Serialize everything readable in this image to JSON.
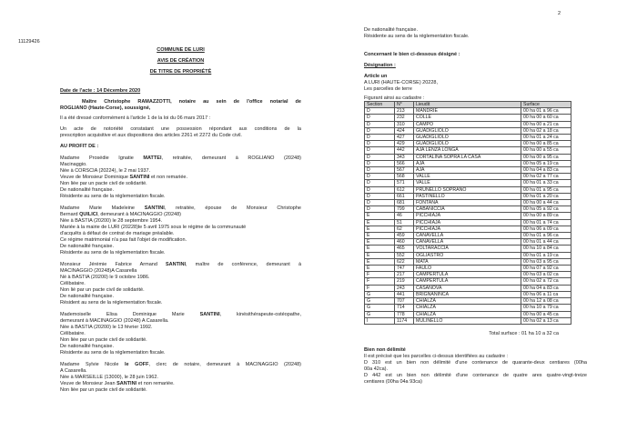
{
  "page_number": "2",
  "reference": "11129426",
  "left": {
    "titles": [
      "COMMUNE DE LURI",
      "AVIS DE CRÉATION",
      "DE TITRE DE PROPRIÉTÉ"
    ],
    "date_acte": "Date de l'acte : 14 Décembre 2020",
    "intro": [
      [
        {
          "t": "Maître Christophe ",
          "b": true
        },
        {
          "t": "RAMAZZOTTI",
          "b": true
        },
        {
          "t": ", notaire au sein de l'office notarial de",
          "b": true
        }
      ],
      [
        {
          "t": "ROGLIANO (Haute-Corse), soussigné,",
          "b": true
        }
      ]
    ],
    "loi": "Il a été dressé conformément à l'article 1 de la loi du 06 mars 2017 :",
    "acte": [
      "Un acte de notoriété constatant une possession répondant aux conditions de la",
      "prescription acquisitive et aux dispositions des articles 2261 et 2272 du Code civil."
    ],
    "au_profit": "AU PROFIT DE :",
    "persons": [
      [
        [
          {
            "t": "Madame Prosédie Ignatie "
          },
          {
            "t": "MATTEI",
            "b": true
          },
          {
            "t": ", retraitée, demeurant à ROGLIANO (20248)"
          }
        ],
        [
          {
            "t": "Macinaggio."
          }
        ],
        [
          {
            "t": "Née à CORSCIA (20224), le 2 mai 1937."
          }
        ],
        [
          {
            "t": "Veuve de Monsieur Dominique "
          },
          {
            "t": "SANTINI",
            "b": true
          },
          {
            "t": " et non remariée."
          }
        ],
        [
          {
            "t": "Non liée par un pacte civil de solidarité."
          }
        ],
        [
          {
            "t": "De nationalité française."
          }
        ],
        [
          {
            "t": "Résidente au sens de la réglementation fiscale."
          }
        ]
      ],
      [
        [
          {
            "t": "Madame Marie Madeleine "
          },
          {
            "t": "SANTINI",
            "b": true
          },
          {
            "t": ", retraitée, épouse de Monsieur Christophe"
          }
        ],
        [
          {
            "t": "Bernard "
          },
          {
            "t": "QUILICI",
            "b": true
          },
          {
            "t": ", demeurant à MACINAGGIO (20248)"
          }
        ],
        [
          {
            "t": "Née à BASTIA (20200) le 28 septembre 1954."
          }
        ],
        [
          {
            "t": "Mariée à la mairie de LURI (20228)le 5 avril 1975 sous le régime de la communauté"
          }
        ],
        [
          {
            "t": "d'acquêts à défaut de contrat de mariage préalable."
          }
        ],
        [
          {
            "t": "Ce régime matrimonial n'a pas fait l'objet de modification."
          }
        ],
        [
          {
            "t": "De nationalité française."
          }
        ],
        [
          {
            "t": "Résidente au sens de la réglementation fiscale."
          }
        ]
      ],
      [
        [
          {
            "t": "Monsieur Jérémie Fabrice Armand "
          },
          {
            "t": "SANTINI",
            "b": true
          },
          {
            "t": ", maître de conférence, demeurant à"
          }
        ],
        [
          {
            "t": "MACINAGGIO (20248)A Casarella"
          }
        ],
        [
          {
            "t": "Né à BASTIA (20200) le 9 octobre 1986."
          }
        ],
        [
          {
            "t": "Célibataire."
          }
        ],
        [
          {
            "t": "Non lié par un pacte civil de solidarité."
          }
        ],
        [
          {
            "t": "De nationalité française."
          }
        ],
        [
          {
            "t": "Résident au sens de la réglementation fiscale."
          }
        ]
      ],
      [
        [
          {
            "t": "Mademoiselle Elisa Dominique Marie "
          },
          {
            "t": "SANTINI",
            "b": true
          },
          {
            "t": ", kinésithérapeute-ostéopathe,"
          }
        ],
        [
          {
            "t": "demeurant à MACINAGGIO (20248) A Casarella."
          }
        ],
        [
          {
            "t": "Née à BASTIA (20200) le 13 février 1992."
          }
        ],
        [
          {
            "t": "Célibataire."
          }
        ],
        [
          {
            "t": "Non liée par un pacte civil de solidarité."
          }
        ],
        [
          {
            "t": "De nationalité française."
          }
        ],
        [
          {
            "t": "Résidente au sens de la réglementation fiscale."
          }
        ]
      ],
      [
        [
          {
            "t": "Madame Sylvie Nicole "
          },
          {
            "t": "le GOFF",
            "b": true
          },
          {
            "t": ", clerc de notaire, demeurant à MACINAGGIO (20248)"
          }
        ],
        [
          {
            "t": "A Casarella."
          }
        ],
        [
          {
            "t": "Née à MARSEILLE (13000), le 28 juin 1962."
          }
        ],
        [
          {
            "t": "Veuve de Monsieur Jean "
          },
          {
            "t": "SANTINI",
            "b": true
          },
          {
            "t": " et non remariée."
          }
        ],
        [
          {
            "t": "Non liée par un pacte civil de solidarité."
          }
        ]
      ]
    ]
  },
  "right": {
    "cont": [
      "De nationalité française.",
      "Résidente au sens de la réglementation fiscale."
    ],
    "concernant": "Concernant le bien ci-dessous désigné :",
    "designation": "Désignation :",
    "article": "Article un",
    "lieu": "A LURI (HAUTE-CORSE) 20228,",
    "parcelles": "Les parcelles de terre",
    "figurant": "Figurant ainsi au cadastre :",
    "table": {
      "headers": [
        "Section",
        "N°",
        "Lieudit",
        "Surface"
      ],
      "rows": [
        [
          "D",
          "213",
          "MANDRIE",
          "00 ha 01 a 96 ca"
        ],
        [
          "D",
          "232",
          "COLLE",
          "00 ha 00 a 60 ca"
        ],
        [
          "D",
          "310",
          "CAMPO",
          "00 ha 00 a 21 ca"
        ],
        [
          "D",
          "424",
          "GUADIGLIOLO",
          "00 ha 02 a 18 ca"
        ],
        [
          "D",
          "427",
          "GUADIGLIOLO",
          "00 ha 01 a 24 ca"
        ],
        [
          "D",
          "429",
          "GUADIGLIOLO",
          "00 ha 00 a 85 ca"
        ],
        [
          "D",
          "442",
          "AJA LENZA LONGA",
          "00 ha 00 a 55 ca"
        ],
        [
          "D",
          "343",
          "CORTALINA SOPRA LA CASA",
          "00 ha 00 a 95 ca"
        ],
        [
          "D",
          "566",
          "AJA",
          "00 ha 05 a 19 ca"
        ],
        [
          "D",
          "567",
          "AJA",
          "00 ha 04 a 83 ca"
        ],
        [
          "D",
          "568",
          "VALLE",
          "00 ha 02 a 77 ca"
        ],
        [
          "D",
          "571",
          "VALLE",
          "00 ha 01 a 33 ca"
        ],
        [
          "D",
          "612",
          "PRUNELLO SOPRANO",
          "00 ha 01 a 95 ca"
        ],
        [
          "D",
          "661",
          "PASTINELLO",
          "00 ha 01 a 20 ca"
        ],
        [
          "D",
          "681",
          "FONTANA",
          "00 ha 00 a 44 ca"
        ],
        [
          "D",
          "799",
          "CABANICCIA",
          "00 ha 05 a 92 ca"
        ],
        [
          "E",
          "46",
          "PICCHIAJA",
          "00 ha 00 a 89 ca"
        ],
        [
          "E",
          "51",
          "PICCHIAJA",
          "00 ha 01 a 74 ca"
        ],
        [
          "E",
          "62",
          "PICCHIAJA",
          "00 ha 06 a 09 ca"
        ],
        [
          "E",
          "459",
          "CANAVELLA",
          "00 ha 01 a 96 ca"
        ],
        [
          "E",
          "460",
          "CANAVELLA",
          "00 ha 01 a 44 ca"
        ],
        [
          "E",
          "465",
          "VOLTARACCIA",
          "00 ha 10 a 84 ca"
        ],
        [
          "E",
          "552",
          "OGLIASTRO",
          "00 ha 01 a 19 ca"
        ],
        [
          "E",
          "622",
          "MATA",
          "00 ha 03 a 95 ca"
        ],
        [
          "E",
          "747",
          "FAULO",
          "00 ha 07 a 92 ca"
        ],
        [
          "F",
          "217",
          "CAMPERTULA",
          "00 ha 03 a 02 ca"
        ],
        [
          "F",
          "219",
          "CAMPERTULA",
          "00 ha 02 a 72 ca"
        ],
        [
          "F",
          "243",
          "CASANOVA",
          "00 ha 04 a 83 ca"
        ],
        [
          "G",
          "441",
          "BRIGNANINCA",
          "00 ha 06 a 11 ca"
        ],
        [
          "G",
          "707",
          "CHIALZA",
          "00 ha 12 a 08 ca"
        ],
        [
          "G",
          "714",
          "CHIALZA",
          "00 ha 10 a 79 ca"
        ],
        [
          "G",
          "778",
          "CHIALZA",
          "00 ha 00 a 45 ca"
        ],
        [
          "I",
          "1174",
          "MULINELLO",
          "00 ha 02 a 13 ca"
        ]
      ]
    },
    "total": "Total surface : 01 ha 10 a 32 ca",
    "bien_title": "Bien non délimité",
    "bien_lines": [
      "Il est précisé que les parcelles ci-dessus identifiées au cadastre :",
      "D 310 est un bien non délimité d'une contenance de quarante-deux centiares (00ha",
      "00a 42ca).",
      "D 442  est un bien non délimité d'une contenance de quatre ares quatre-vingt-treize",
      "centiares (00ha 04a 93ca)"
    ]
  }
}
